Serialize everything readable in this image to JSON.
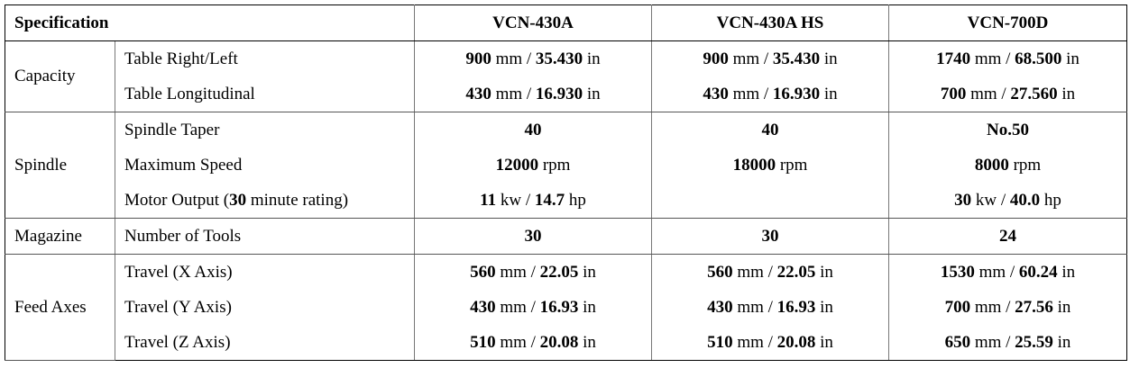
{
  "header": [
    "Specification",
    "VCN-430A",
    "VCN-430A HS",
    "VCN-700D"
  ],
  "sections": [
    {
      "name": "Capacity",
      "rows": [
        {
          "label": [
            {
              "t": "Table Right/Left",
              "bold": false
            }
          ],
          "cells": [
            [
              {
                "t": "900",
                "bold": true
              },
              {
                "t": " mm / ",
                "bold": false
              },
              {
                "t": "35.430",
                "bold": true
              },
              {
                "t": " in",
                "bold": false
              }
            ],
            [
              {
                "t": "900",
                "bold": true
              },
              {
                "t": " mm / ",
                "bold": false
              },
              {
                "t": "35.430",
                "bold": true
              },
              {
                "t": " in",
                "bold": false
              }
            ],
            [
              {
                "t": "1740",
                "bold": true
              },
              {
                "t": " mm / ",
                "bold": false
              },
              {
                "t": "68.500",
                "bold": true
              },
              {
                "t": " in",
                "bold": false
              }
            ]
          ]
        },
        {
          "label": [
            {
              "t": "Table Longitudinal",
              "bold": false
            }
          ],
          "cells": [
            [
              {
                "t": "430",
                "bold": true
              },
              {
                "t": " mm / ",
                "bold": false
              },
              {
                "t": "16.930",
                "bold": true
              },
              {
                "t": " in",
                "bold": false
              }
            ],
            [
              {
                "t": "430",
                "bold": true
              },
              {
                "t": " mm / ",
                "bold": false
              },
              {
                "t": "16.930",
                "bold": true
              },
              {
                "t": " in",
                "bold": false
              }
            ],
            [
              {
                "t": "700",
                "bold": true
              },
              {
                "t": " mm / ",
                "bold": false
              },
              {
                "t": "27.560",
                "bold": true
              },
              {
                "t": " in",
                "bold": false
              }
            ]
          ]
        }
      ]
    },
    {
      "name": "Spindle",
      "rows": [
        {
          "label": [
            {
              "t": "Spindle Taper",
              "bold": false
            }
          ],
          "cells": [
            [
              {
                "t": "40",
                "bold": true
              }
            ],
            [
              {
                "t": "40",
                "bold": true
              }
            ],
            [
              {
                "t": "No.50",
                "bold": true
              }
            ]
          ]
        },
        {
          "label": [
            {
              "t": "Maximum Speed",
              "bold": false
            }
          ],
          "cells": [
            [
              {
                "t": "12000",
                "bold": true
              },
              {
                "t": " rpm",
                "bold": false
              }
            ],
            [
              {
                "t": "18000",
                "bold": true
              },
              {
                "t": " rpm",
                "bold": false
              }
            ],
            [
              {
                "t": "8000",
                "bold": true
              },
              {
                "t": " rpm",
                "bold": false
              }
            ]
          ]
        },
        {
          "label": [
            {
              "t": "Motor Output (",
              "bold": false
            },
            {
              "t": "30",
              "bold": true
            },
            {
              "t": " minute rating)",
              "bold": false
            }
          ],
          "cells": [
            [
              {
                "t": "11",
                "bold": true
              },
              {
                "t": " kw / ",
                "bold": false
              },
              {
                "t": "14.7",
                "bold": true
              },
              {
                "t": " hp",
                "bold": false
              }
            ],
            [],
            [
              {
                "t": "30",
                "bold": true
              },
              {
                "t": " kw / ",
                "bold": false
              },
              {
                "t": "40.0",
                "bold": true
              },
              {
                "t": " hp",
                "bold": false
              }
            ]
          ]
        }
      ]
    },
    {
      "name": "Magazine",
      "rows": [
        {
          "label": [
            {
              "t": "Number of Tools",
              "bold": false
            }
          ],
          "cells": [
            [
              {
                "t": "30",
                "bold": true
              }
            ],
            [
              {
                "t": "30",
                "bold": true
              }
            ],
            [
              {
                "t": "24",
                "bold": true
              }
            ]
          ]
        }
      ]
    },
    {
      "name": "Feed Axes",
      "rows": [
        {
          "label": [
            {
              "t": "Travel (X Axis)",
              "bold": false
            }
          ],
          "cells": [
            [
              {
                "t": "560",
                "bold": true
              },
              {
                "t": " mm / ",
                "bold": false
              },
              {
                "t": "22.05",
                "bold": true
              },
              {
                "t": " in",
                "bold": false
              }
            ],
            [
              {
                "t": "560",
                "bold": true
              },
              {
                "t": " mm / ",
                "bold": false
              },
              {
                "t": "22.05",
                "bold": true
              },
              {
                "t": " in",
                "bold": false
              }
            ],
            [
              {
                "t": "1530",
                "bold": true
              },
              {
                "t": " mm / ",
                "bold": false
              },
              {
                "t": "60.24",
                "bold": true
              },
              {
                "t": " in",
                "bold": false
              }
            ]
          ]
        },
        {
          "label": [
            {
              "t": "Travel (Y Axis)",
              "bold": false
            }
          ],
          "cells": [
            [
              {
                "t": "430",
                "bold": true
              },
              {
                "t": " mm / ",
                "bold": false
              },
              {
                "t": "16.93",
                "bold": true
              },
              {
                "t": " in",
                "bold": false
              }
            ],
            [
              {
                "t": "430",
                "bold": true
              },
              {
                "t": " mm / ",
                "bold": false
              },
              {
                "t": "16.93",
                "bold": true
              },
              {
                "t": " in",
                "bold": false
              }
            ],
            [
              {
                "t": "700",
                "bold": true
              },
              {
                "t": " mm / ",
                "bold": false
              },
              {
                "t": "27.56",
                "bold": true
              },
              {
                "t": " in",
                "bold": false
              }
            ]
          ]
        },
        {
          "label": [
            {
              "t": "Travel (Z Axis)",
              "bold": false
            }
          ],
          "cells": [
            [
              {
                "t": "510",
                "bold": true
              },
              {
                "t": " mm / ",
                "bold": false
              },
              {
                "t": "20.08",
                "bold": true
              },
              {
                "t": " in",
                "bold": false
              }
            ],
            [
              {
                "t": "510",
                "bold": true
              },
              {
                "t": " mm / ",
                "bold": false
              },
              {
                "t": "20.08",
                "bold": true
              },
              {
                "t": " in",
                "bold": false
              }
            ],
            [
              {
                "t": "650",
                "bold": true
              },
              {
                "t": " mm / ",
                "bold": false
              },
              {
                "t": "25.59",
                "bold": true
              },
              {
                "t": " in",
                "bold": false
              }
            ]
          ]
        }
      ]
    }
  ]
}
